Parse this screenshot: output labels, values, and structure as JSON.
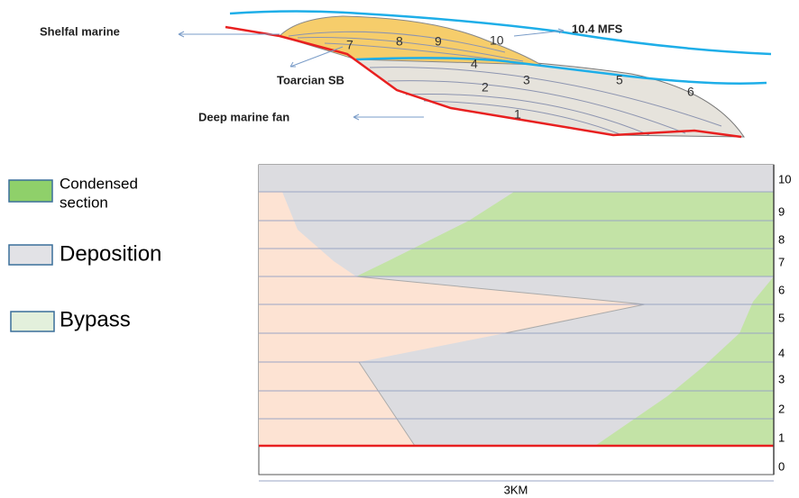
{
  "cross_section": {
    "labels": {
      "shelfal": "Shelfal marine",
      "mfs": "10.4 MFS",
      "sb": "Toarcian SB",
      "fan": "Deep marine fan"
    },
    "units": [
      "1",
      "2",
      "3",
      "4",
      "5",
      "6",
      "7",
      "8",
      "9",
      "10"
    ]
  },
  "legend": [
    {
      "label": [
        "Condensed",
        "section"
      ]
    },
    {
      "label": [
        "Deposition"
      ]
    },
    {
      "label": [
        "Bypass"
      ]
    }
  ],
  "wheeler": {
    "levels": [
      "10",
      "9",
      "8",
      "7",
      "6",
      "5",
      "4",
      "3",
      "2",
      "1",
      "0"
    ],
    "scale": "3KM"
  }
}
